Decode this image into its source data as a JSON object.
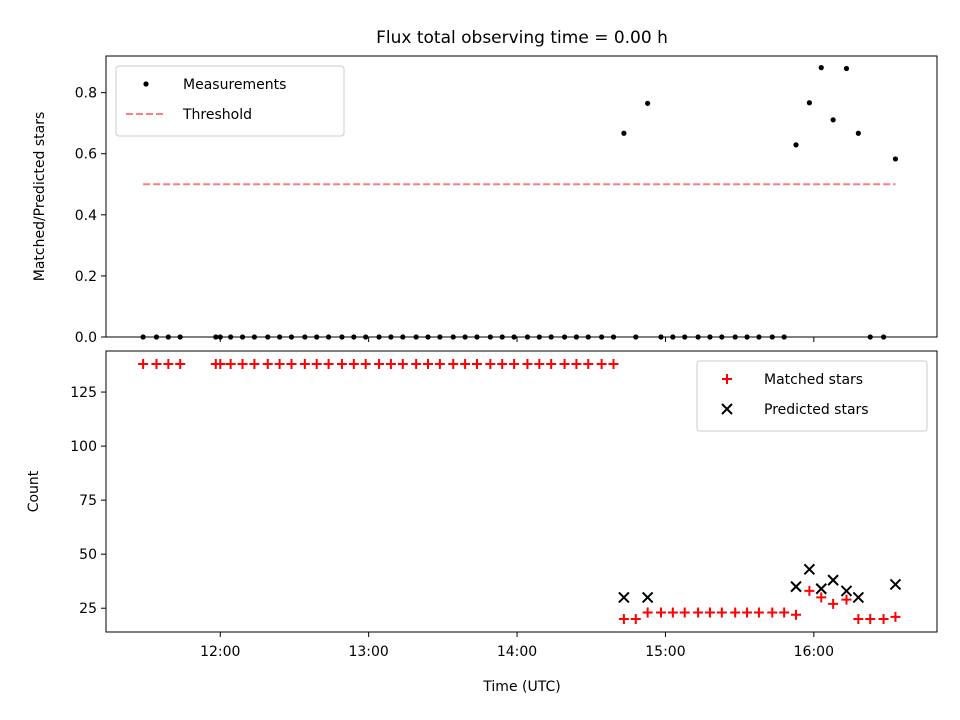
{
  "figure": {
    "title": "Flux total observing time = 0.00 h",
    "xlabel": "Time (UTC)",
    "x_ticks": [
      "12:00",
      "13:00",
      "14:00",
      "15:00",
      "16:00"
    ],
    "x_tick_values": [
      12.0,
      13.0,
      14.0,
      15.0,
      16.0
    ],
    "xlim": [
      11.23,
      16.83
    ]
  },
  "chart_data": [
    {
      "type": "scatter",
      "title": "Flux total observing time = 0.00 h",
      "xlabel": "",
      "ylabel": "Matched/Predicted stars",
      "ylim": [
        0,
        0.92
      ],
      "y_ticks": [
        "0.0",
        "0.2",
        "0.4",
        "0.6",
        "0.8"
      ],
      "y_tick_values": [
        0.0,
        0.2,
        0.4,
        0.6,
        0.8
      ],
      "legend_position": "top-left",
      "grid": false,
      "series": [
        {
          "name": "Measurements",
          "marker": "dot",
          "color": "#000000",
          "points": [
            [
              11.48,
              0.0
            ],
            [
              11.57,
              0.0
            ],
            [
              11.65,
              0.0
            ],
            [
              11.73,
              0.0
            ],
            [
              11.97,
              0.0
            ],
            [
              12.0,
              0.0
            ],
            [
              12.07,
              0.0
            ],
            [
              12.15,
              0.0
            ],
            [
              12.23,
              0.0
            ],
            [
              12.32,
              0.0
            ],
            [
              12.4,
              0.0
            ],
            [
              12.48,
              0.0
            ],
            [
              12.57,
              0.0
            ],
            [
              12.65,
              0.0
            ],
            [
              12.73,
              0.0
            ],
            [
              12.82,
              0.0
            ],
            [
              12.9,
              0.0
            ],
            [
              12.98,
              0.0
            ],
            [
              13.07,
              0.0
            ],
            [
              13.15,
              0.0
            ],
            [
              13.23,
              0.0
            ],
            [
              13.32,
              0.0
            ],
            [
              13.4,
              0.0
            ],
            [
              13.48,
              0.0
            ],
            [
              13.57,
              0.0
            ],
            [
              13.65,
              0.0
            ],
            [
              13.73,
              0.0
            ],
            [
              13.82,
              0.0
            ],
            [
              13.9,
              0.0
            ],
            [
              13.98,
              0.0
            ],
            [
              14.07,
              0.0
            ],
            [
              14.15,
              0.0
            ],
            [
              14.23,
              0.0
            ],
            [
              14.32,
              0.0
            ],
            [
              14.4,
              0.0
            ],
            [
              14.48,
              0.0
            ],
            [
              14.57,
              0.0
            ],
            [
              14.65,
              0.0
            ],
            [
              14.72,
              0.667
            ],
            [
              14.8,
              0.0
            ],
            [
              14.88,
              0.765
            ],
            [
              14.97,
              0.0
            ],
            [
              15.05,
              0.0
            ],
            [
              15.13,
              0.0
            ],
            [
              15.22,
              0.0
            ],
            [
              15.3,
              0.0
            ],
            [
              15.38,
              0.0
            ],
            [
              15.47,
              0.0
            ],
            [
              15.55,
              0.0
            ],
            [
              15.63,
              0.0
            ],
            [
              15.72,
              0.0
            ],
            [
              15.8,
              0.0
            ],
            [
              15.88,
              0.629
            ],
            [
              15.97,
              0.767
            ],
            [
              16.05,
              0.882
            ],
            [
              16.13,
              0.711
            ],
            [
              16.22,
              0.879
            ],
            [
              16.3,
              0.667
            ],
            [
              16.38,
              0.0
            ],
            [
              16.47,
              0.0
            ],
            [
              16.55,
              0.583
            ]
          ]
        },
        {
          "name": "Threshold",
          "line": "dashed",
          "color": "#ff7f7f",
          "points": [
            [
              11.48,
              0.5
            ],
            [
              16.55,
              0.5
            ]
          ]
        }
      ]
    },
    {
      "type": "scatter",
      "xlabel": "Time (UTC)",
      "ylabel": "Count",
      "ylim": [
        14,
        144
      ],
      "y_ticks": [
        "25",
        "50",
        "75",
        "100",
        "125"
      ],
      "y_tick_values": [
        25,
        50,
        75,
        100,
        125
      ],
      "legend_position": "top-right",
      "grid": false,
      "series": [
        {
          "name": "Matched stars",
          "marker": "plus",
          "color": "#ff0000",
          "points": [
            [
              11.48,
              138
            ],
            [
              11.57,
              138
            ],
            [
              11.65,
              138
            ],
            [
              11.73,
              138
            ],
            [
              11.97,
              138
            ],
            [
              12.0,
              138
            ],
            [
              12.07,
              138
            ],
            [
              12.15,
              138
            ],
            [
              12.23,
              138
            ],
            [
              12.32,
              138
            ],
            [
              12.4,
              138
            ],
            [
              12.48,
              138
            ],
            [
              12.57,
              138
            ],
            [
              12.65,
              138
            ],
            [
              12.73,
              138
            ],
            [
              12.82,
              138
            ],
            [
              12.9,
              138
            ],
            [
              12.98,
              138
            ],
            [
              13.07,
              138
            ],
            [
              13.15,
              138
            ],
            [
              13.23,
              138
            ],
            [
              13.32,
              138
            ],
            [
              13.4,
              138
            ],
            [
              13.48,
              138
            ],
            [
              13.57,
              138
            ],
            [
              13.65,
              138
            ],
            [
              13.73,
              138
            ],
            [
              13.82,
              138
            ],
            [
              13.9,
              138
            ],
            [
              13.98,
              138
            ],
            [
              14.07,
              138
            ],
            [
              14.15,
              138
            ],
            [
              14.23,
              138
            ],
            [
              14.32,
              138
            ],
            [
              14.4,
              138
            ],
            [
              14.48,
              138
            ],
            [
              14.57,
              138
            ],
            [
              14.65,
              138
            ],
            [
              14.72,
              20
            ],
            [
              14.8,
              20
            ],
            [
              14.88,
              23
            ],
            [
              14.97,
              23
            ],
            [
              15.05,
              23
            ],
            [
              15.13,
              23
            ],
            [
              15.22,
              23
            ],
            [
              15.3,
              23
            ],
            [
              15.38,
              23
            ],
            [
              15.47,
              23
            ],
            [
              15.55,
              23
            ],
            [
              15.63,
              23
            ],
            [
              15.72,
              23
            ],
            [
              15.8,
              23
            ],
            [
              15.88,
              22
            ],
            [
              15.97,
              33
            ],
            [
              16.05,
              30
            ],
            [
              16.13,
              27
            ],
            [
              16.22,
              29
            ],
            [
              16.3,
              20
            ],
            [
              16.38,
              20
            ],
            [
              16.47,
              20
            ],
            [
              16.55,
              21
            ]
          ]
        },
        {
          "name": "Predicted stars",
          "marker": "x",
          "color": "#000000",
          "points": [
            [
              14.72,
              30
            ],
            [
              14.88,
              30
            ],
            [
              15.88,
              35
            ],
            [
              15.97,
              43
            ],
            [
              16.05,
              34
            ],
            [
              16.13,
              38
            ],
            [
              16.22,
              33
            ],
            [
              16.3,
              30
            ],
            [
              16.55,
              36
            ]
          ]
        }
      ]
    }
  ]
}
